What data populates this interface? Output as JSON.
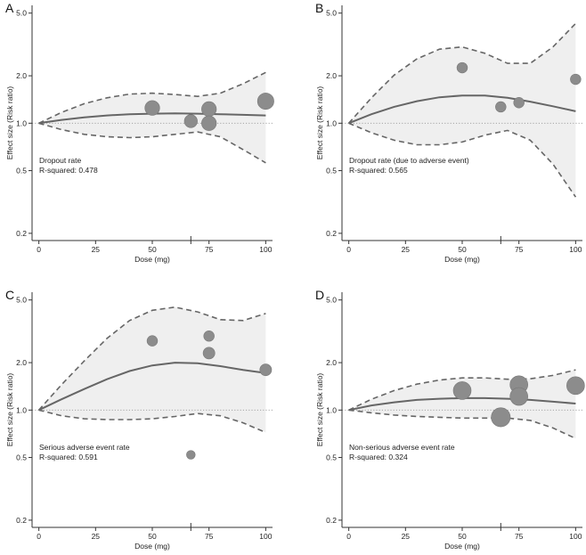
{
  "figure": {
    "y_axis_label": "Effect size (Risk ratio)",
    "x_axis_label": "Dose (mg)",
    "colors": {
      "band": "#efefef",
      "curve": "#666666",
      "ci_line": "#666666",
      "point": "#8c8c8c",
      "reference": "#9a9a9a",
      "axis": "#333333"
    }
  },
  "chart_data": [
    {
      "type": "scatter",
      "panel": "A",
      "annotation": "Dropout rate",
      "r_squared_label": "R-squared: 0.478",
      "xlabel": "Dose (mg)",
      "ylabel": "Effect size (Risk ratio)",
      "y_scale": "log",
      "ylim": [
        0.18,
        5.6
      ],
      "xlim": [
        -3,
        103
      ],
      "x_ticks": [
        0,
        25,
        50,
        75,
        100
      ],
      "x_tick_labels": [
        "0",
        "25",
        "50",
        "75",
        "100"
      ],
      "x_minor_ticks": [
        67
      ],
      "y_ticks": [
        0.2,
        0.5,
        1.0,
        2.0,
        5.0
      ],
      "y_tick_labels": [
        "0.2",
        "0.5",
        "1.0",
        "2.0",
        "5.0"
      ],
      "reference_y": 1.0,
      "curve": {
        "x": [
          0,
          10,
          20,
          30,
          40,
          50,
          60,
          70,
          80,
          90,
          100
        ],
        "y": [
          1.0,
          1.05,
          1.09,
          1.12,
          1.14,
          1.15,
          1.155,
          1.15,
          1.14,
          1.13,
          1.12
        ]
      },
      "upper": {
        "x": [
          0,
          10,
          20,
          30,
          40,
          50,
          60,
          70,
          80,
          90,
          100
        ],
        "y": [
          1.0,
          1.17,
          1.33,
          1.45,
          1.53,
          1.55,
          1.52,
          1.48,
          1.55,
          1.78,
          2.1
        ]
      },
      "lower": {
        "x": [
          0,
          10,
          20,
          30,
          40,
          50,
          60,
          70,
          80,
          90,
          100
        ],
        "y": [
          1.0,
          0.91,
          0.85,
          0.82,
          0.81,
          0.82,
          0.85,
          0.88,
          0.82,
          0.68,
          0.56
        ]
      },
      "points": [
        {
          "x": 50,
          "y": 1.25,
          "weight": 3
        },
        {
          "x": 67,
          "y": 1.03,
          "weight": 2
        },
        {
          "x": 75,
          "y": 1.23,
          "weight": 3
        },
        {
          "x": 75,
          "y": 1.0,
          "weight": 3
        },
        {
          "x": 100,
          "y": 1.38,
          "weight": 4
        }
      ]
    },
    {
      "type": "scatter",
      "panel": "B",
      "annotation": "Dropout rate (due to adverse event)",
      "r_squared_label": "R-squared: 0.565",
      "xlabel": "Dose (mg)",
      "ylabel": "Effect size (Risk ratio)",
      "y_scale": "log",
      "ylim": [
        0.18,
        5.6
      ],
      "xlim": [
        -3,
        103
      ],
      "x_ticks": [
        0,
        25,
        50,
        75,
        100
      ],
      "x_tick_labels": [
        "0",
        "25",
        "50",
        "75",
        "100"
      ],
      "x_minor_ticks": [
        67
      ],
      "y_ticks": [
        0.2,
        0.5,
        1.0,
        2.0,
        5.0
      ],
      "y_tick_labels": [
        "0.2",
        "0.5",
        "1.0",
        "2.0",
        "5.0"
      ],
      "reference_y": 1.0,
      "curve": {
        "x": [
          0,
          10,
          20,
          30,
          40,
          50,
          60,
          70,
          80,
          90,
          100
        ],
        "y": [
          1.0,
          1.14,
          1.27,
          1.38,
          1.46,
          1.5,
          1.5,
          1.45,
          1.37,
          1.28,
          1.19
        ]
      },
      "upper": {
        "x": [
          0,
          10,
          20,
          30,
          40,
          50,
          60,
          70,
          80,
          90,
          100
        ],
        "y": [
          1.0,
          1.45,
          2.02,
          2.56,
          2.95,
          3.05,
          2.78,
          2.4,
          2.4,
          3.05,
          4.3
        ]
      },
      "lower": {
        "x": [
          0,
          10,
          20,
          30,
          40,
          50,
          60,
          70,
          80,
          90,
          100
        ],
        "y": [
          1.0,
          0.87,
          0.78,
          0.73,
          0.73,
          0.76,
          0.84,
          0.9,
          0.78,
          0.55,
          0.34
        ]
      },
      "points": [
        {
          "x": 50,
          "y": 2.25,
          "weight": 1
        },
        {
          "x": 67,
          "y": 1.27,
          "weight": 1
        },
        {
          "x": 75,
          "y": 1.35,
          "weight": 1
        },
        {
          "x": 100,
          "y": 1.9,
          "weight": 1
        }
      ]
    },
    {
      "type": "scatter",
      "panel": "C",
      "annotation": "Serious adverse event rate",
      "r_squared_label": "R-squared: 0.591",
      "xlabel": "Dose (mg)",
      "ylabel": "Effect size (Risk ratio)",
      "y_scale": "log",
      "ylim": [
        0.18,
        5.6
      ],
      "xlim": [
        -3,
        103
      ],
      "x_ticks": [
        0,
        25,
        50,
        75,
        100
      ],
      "x_tick_labels": [
        "0",
        "25",
        "50",
        "75",
        "100"
      ],
      "x_minor_ticks": [
        67
      ],
      "y_ticks": [
        0.2,
        0.5,
        1.0,
        2.0,
        5.0
      ],
      "y_tick_labels": [
        "0.2",
        "0.5",
        "1.0",
        "2.0",
        "5.0"
      ],
      "reference_y": 1.0,
      "curve": {
        "x": [
          0,
          10,
          20,
          30,
          40,
          50,
          60,
          70,
          80,
          90,
          100
        ],
        "y": [
          1.0,
          1.17,
          1.36,
          1.57,
          1.77,
          1.92,
          2.0,
          1.98,
          1.9,
          1.8,
          1.72
        ]
      },
      "upper": {
        "x": [
          0,
          10,
          20,
          30,
          40,
          50,
          60,
          70,
          80,
          90,
          100
        ],
        "y": [
          1.0,
          1.45,
          2.05,
          2.85,
          3.7,
          4.3,
          4.5,
          4.2,
          3.75,
          3.7,
          4.1
        ]
      },
      "lower": {
        "x": [
          0,
          10,
          20,
          30,
          40,
          50,
          60,
          70,
          80,
          90,
          100
        ],
        "y": [
          1.0,
          0.92,
          0.88,
          0.87,
          0.87,
          0.88,
          0.91,
          0.95,
          0.92,
          0.83,
          0.72
        ]
      },
      "points": [
        {
          "x": 50,
          "y": 2.75,
          "weight": 1
        },
        {
          "x": 67,
          "y": 0.52,
          "weight": 0.5
        },
        {
          "x": 75,
          "y": 2.95,
          "weight": 1
        },
        {
          "x": 75,
          "y": 2.3,
          "weight": 1.5
        },
        {
          "x": 100,
          "y": 1.8,
          "weight": 1.5
        }
      ]
    },
    {
      "type": "scatter",
      "panel": "D",
      "annotation": "Non-serious adverse event rate",
      "r_squared_label": "R-squared: 0.324",
      "xlabel": "Dose (mg)",
      "ylabel": "Effect size (Risk ratio)",
      "y_scale": "log",
      "ylim": [
        0.18,
        5.6
      ],
      "xlim": [
        -3,
        103
      ],
      "x_ticks": [
        0,
        25,
        50,
        75,
        100
      ],
      "x_tick_labels": [
        "0",
        "25",
        "50",
        "75",
        "100"
      ],
      "x_minor_ticks": [
        67
      ],
      "y_ticks": [
        0.2,
        0.5,
        1.0,
        2.0,
        5.0
      ],
      "y_tick_labels": [
        "0.2",
        "0.5",
        "1.0",
        "2.0",
        "5.0"
      ],
      "reference_y": 1.0,
      "curve": {
        "x": [
          0,
          10,
          20,
          30,
          40,
          50,
          60,
          70,
          80,
          90,
          100
        ],
        "y": [
          1.0,
          1.07,
          1.12,
          1.16,
          1.18,
          1.19,
          1.19,
          1.18,
          1.16,
          1.13,
          1.1
        ]
      },
      "upper": {
        "x": [
          0,
          10,
          20,
          30,
          40,
          50,
          60,
          70,
          80,
          90,
          100
        ],
        "y": [
          1.0,
          1.17,
          1.33,
          1.46,
          1.55,
          1.6,
          1.6,
          1.57,
          1.58,
          1.66,
          1.8
        ]
      },
      "lower": {
        "x": [
          0,
          10,
          20,
          30,
          40,
          50,
          60,
          70,
          80,
          90,
          100
        ],
        "y": [
          1.0,
          0.96,
          0.93,
          0.91,
          0.9,
          0.89,
          0.89,
          0.89,
          0.86,
          0.77,
          0.66
        ]
      },
      "points": [
        {
          "x": 50,
          "y": 1.33,
          "weight": 5
        },
        {
          "x": 67,
          "y": 0.9,
          "weight": 6
        },
        {
          "x": 75,
          "y": 1.45,
          "weight": 5
        },
        {
          "x": 75,
          "y": 1.22,
          "weight": 5
        },
        {
          "x": 100,
          "y": 1.43,
          "weight": 5
        }
      ]
    }
  ]
}
